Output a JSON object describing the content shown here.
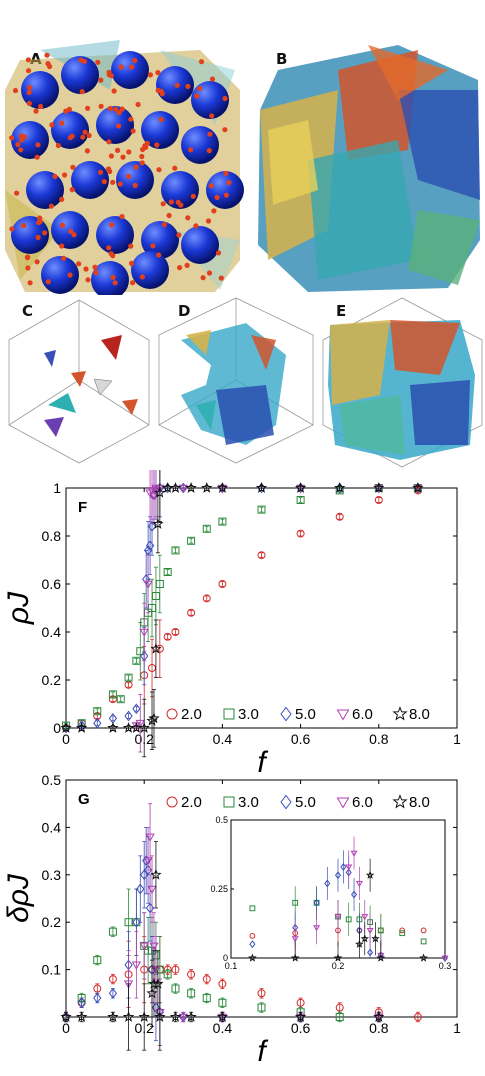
{
  "panels": {
    "a": "A",
    "b": "B",
    "c": "C",
    "d": "D",
    "e": "E"
  },
  "chart_data": [
    {
      "panel": "F",
      "type": "scatter",
      "xlabel": "f",
      "ylabel": "ρJ",
      "xlim": [
        0,
        1
      ],
      "ylim": [
        0,
        1
      ],
      "xticks": [
        "0",
        "0.2",
        "0.4",
        "0.6",
        "0.8",
        "1"
      ],
      "yticks": [
        "0",
        "0.2",
        "0.4",
        "0.6",
        "0.8",
        "1"
      ],
      "legend_position": "bottom",
      "series": [
        {
          "name": "2.0",
          "marker": "circle",
          "color": "#d42a2a",
          "x": [
            0.0,
            0.04,
            0.08,
            0.12,
            0.16,
            0.2,
            0.22,
            0.24,
            0.26,
            0.28,
            0.32,
            0.36,
            0.4,
            0.5,
            0.6,
            0.7,
            0.8,
            0.9
          ],
          "y": [
            0.0,
            0.02,
            0.05,
            0.12,
            0.18,
            0.22,
            0.25,
            0.33,
            0.38,
            0.4,
            0.48,
            0.54,
            0.6,
            0.72,
            0.81,
            0.88,
            0.95,
            0.99
          ]
        },
        {
          "name": "3.0",
          "marker": "square",
          "color": "#2a8a3a",
          "x": [
            0.0,
            0.04,
            0.08,
            0.12,
            0.14,
            0.16,
            0.18,
            0.19,
            0.2,
            0.21,
            0.22,
            0.23,
            0.24,
            0.26,
            0.28,
            0.32,
            0.36,
            0.4,
            0.5,
            0.6,
            0.7,
            0.8,
            0.9
          ],
          "y": [
            0.01,
            0.02,
            0.07,
            0.14,
            0.12,
            0.21,
            0.28,
            0.32,
            0.44,
            0.48,
            0.5,
            0.55,
            0.6,
            0.65,
            0.74,
            0.78,
            0.83,
            0.86,
            0.91,
            0.95,
            0.99,
            1.0,
            1.0
          ]
        },
        {
          "name": "5.0",
          "marker": "diamond",
          "color": "#3a4fb8",
          "x": [
            0.0,
            0.04,
            0.08,
            0.12,
            0.16,
            0.18,
            0.2,
            0.205,
            0.21,
            0.215,
            0.22,
            0.225,
            0.23,
            0.24,
            0.26,
            0.3,
            0.4,
            0.5,
            0.6,
            0.7,
            0.8,
            0.9
          ],
          "y": [
            0.0,
            0.01,
            0.02,
            0.04,
            0.05,
            0.08,
            0.3,
            0.62,
            0.74,
            0.76,
            0.84,
            0.97,
            0.99,
            1.0,
            1.0,
            1.0,
            1.0,
            1.0,
            1.0,
            1.0,
            1.0,
            1.0
          ]
        },
        {
          "name": "6.0",
          "marker": "triangle-down",
          "color": "#b03fb0",
          "x": [
            0.18,
            0.19,
            0.2,
            0.21,
            0.215,
            0.22,
            0.225,
            0.23,
            0.24,
            0.3,
            0.4,
            0.6,
            0.8,
            0.9
          ],
          "y": [
            0.01,
            0.02,
            0.4,
            0.6,
            0.98,
            0.99,
            0.97,
            1.0,
            1.0,
            1.0,
            1.0,
            1.0,
            1.0,
            1.0
          ]
        },
        {
          "name": "8.0",
          "marker": "star",
          "color": "#111111",
          "x": [
            0.0,
            0.04,
            0.12,
            0.16,
            0.18,
            0.2,
            0.22,
            0.225,
            0.23,
            0.235,
            0.24,
            0.26,
            0.28,
            0.32,
            0.36,
            0.4,
            0.5,
            0.6,
            0.7,
            0.8,
            0.9
          ],
          "y": [
            0.0,
            0.0,
            0.0,
            0.0,
            0.0,
            0.0,
            0.03,
            0.04,
            0.33,
            0.85,
            0.98,
            1.0,
            1.0,
            1.0,
            1.0,
            1.0,
            1.0,
            1.0,
            1.0,
            1.0,
            1.0
          ]
        }
      ]
    },
    {
      "panel": "G",
      "type": "scatter",
      "xlabel": "f",
      "ylabel": "δρJ",
      "xlim": [
        0,
        1
      ],
      "ylim": [
        0,
        0.5
      ],
      "xticks": [
        "0",
        "0.2",
        "0.4",
        "0.6",
        "0.8",
        "1"
      ],
      "yticks": [
        "0.1",
        "0.2",
        "0.3",
        "0.4",
        "0.5"
      ],
      "legend_position": "top",
      "series": [
        {
          "name": "2.0",
          "marker": "circle",
          "color": "#d42a2a",
          "x": [
            0.0,
            0.04,
            0.08,
            0.12,
            0.16,
            0.2,
            0.22,
            0.24,
            0.26,
            0.28,
            0.32,
            0.36,
            0.4,
            0.5,
            0.6,
            0.7,
            0.8,
            0.9
          ],
          "y": [
            0.0,
            0.03,
            0.06,
            0.08,
            0.09,
            0.1,
            0.1,
            0.1,
            0.1,
            0.1,
            0.09,
            0.08,
            0.07,
            0.05,
            0.03,
            0.02,
            0.01,
            0.0
          ]
        },
        {
          "name": "3.0",
          "marker": "square",
          "color": "#2a8a3a",
          "x": [
            0.04,
            0.08,
            0.12,
            0.16,
            0.18,
            0.2,
            0.21,
            0.22,
            0.23,
            0.24,
            0.26,
            0.28,
            0.32,
            0.36,
            0.4,
            0.5,
            0.6,
            0.7
          ],
          "y": [
            0.04,
            0.12,
            0.18,
            0.2,
            0.2,
            0.15,
            0.14,
            0.14,
            0.13,
            0.1,
            0.09,
            0.06,
            0.05,
            0.04,
            0.03,
            0.02,
            0.01,
            0.0
          ]
        },
        {
          "name": "5.0",
          "marker": "diamond",
          "color": "#3a4fb8",
          "x": [
            0.0,
            0.04,
            0.08,
            0.12,
            0.16,
            0.18,
            0.19,
            0.2,
            0.205,
            0.21,
            0.215,
            0.22,
            0.23,
            0.24,
            0.3,
            0.4,
            0.6,
            0.8
          ],
          "y": [
            0.0,
            0.03,
            0.04,
            0.05,
            0.11,
            0.2,
            0.27,
            0.3,
            0.33,
            0.31,
            0.23,
            0.1,
            0.02,
            0.01,
            0.0,
            0.0,
            0.0,
            0.0
          ]
        },
        {
          "name": "6.0",
          "marker": "triangle-down",
          "color": "#b03fb0",
          "x": [
            0.16,
            0.18,
            0.2,
            0.21,
            0.215,
            0.22,
            0.225,
            0.23,
            0.24,
            0.3,
            0.4,
            0.6,
            0.8
          ],
          "y": [
            0.07,
            0.11,
            0.15,
            0.33,
            0.38,
            0.27,
            0.15,
            0.1,
            0.01,
            0.0,
            0.0,
            0.0,
            0.0
          ]
        },
        {
          "name": "8.0",
          "marker": "star",
          "color": "#111111",
          "x": [
            0.0,
            0.04,
            0.12,
            0.16,
            0.2,
            0.22,
            0.225,
            0.23,
            0.235,
            0.24,
            0.28,
            0.32,
            0.4,
            0.6,
            0.8
          ],
          "y": [
            0.0,
            0.0,
            0.0,
            0.0,
            0.0,
            0.05,
            0.07,
            0.3,
            0.07,
            0.0,
            0.0,
            0.0,
            0.0,
            0.0,
            0.0
          ]
        }
      ],
      "inset": {
        "xlim": [
          0.1,
          0.3
        ],
        "ylim": [
          0,
          0.5
        ],
        "xticks": [
          "0.1",
          "0.2",
          "0.3"
        ],
        "yticks": [
          "0",
          "0.25",
          "0.5"
        ]
      }
    }
  ]
}
